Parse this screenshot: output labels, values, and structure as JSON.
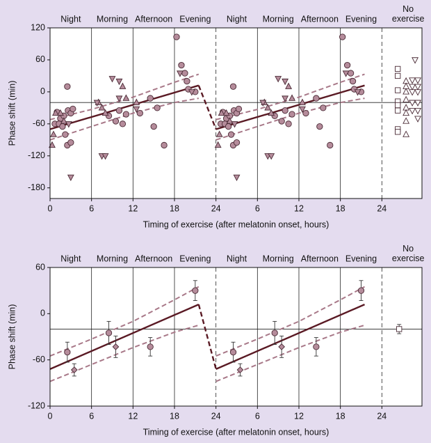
{
  "chart_data": [
    {
      "type": "scatter",
      "ylabel": "Phase shift (min)",
      "xlabel": "Timing of exercise (after melatonin onset, hours)",
      "periods": [
        "Night",
        "Morning",
        "Afternoon",
        "Evening",
        "Night",
        "Morning",
        "Afternoon",
        "Evening",
        "No exercise"
      ],
      "xlim": [
        0,
        53.8
      ],
      "ylim": [
        -200,
        120
      ],
      "xticks": [
        0,
        6,
        12,
        18,
        24,
        {
          "value": 30,
          "label": "6"
        },
        {
          "value": 36,
          "label": "12"
        },
        {
          "value": 42,
          "label": "18"
        },
        {
          "value": 48,
          "label": "24"
        }
      ],
      "yticks": [
        120,
        60,
        0,
        -60,
        -120,
        -180
      ],
      "vlines": [
        6,
        12,
        18,
        30,
        36,
        42
      ],
      "dashed_vlines": [
        24,
        48
      ],
      "ref_line": -20,
      "series": [
        {
          "marker": "circle",
          "color": "#b58c9b",
          "x": [
            2.5,
            1.0,
            1.5,
            2.0,
            2.6,
            3.0,
            3.3,
            0.7,
            1.3,
            1.8,
            2.5,
            3.0,
            2.2,
            8.5,
            9.5,
            10.0,
            11.0,
            10.5,
            13.0,
            14.5,
            15.5,
            15.0,
            16.5,
            18.3,
            19.0,
            19.5,
            20.0,
            21.0,
            19.8,
            26.5,
            25.0,
            25.5,
            26.0,
            26.6,
            27.0,
            27.3,
            24.7,
            25.3,
            25.8,
            26.5,
            27.0,
            26.2,
            32.5,
            33.5,
            34.0,
            35.0,
            34.5,
            37.0,
            38.5,
            39.5,
            39.0,
            40.5,
            42.3,
            43.0,
            43.5,
            44.0,
            45.0,
            43.8
          ],
          "values": [
            10,
            -38,
            -50,
            -45,
            -35,
            -40,
            -32,
            -60,
            -60,
            -65,
            -100,
            -95,
            -80,
            -45,
            -55,
            -35,
            -42,
            -60,
            -40,
            -12,
            -30,
            -65,
            -100,
            103,
            50,
            35,
            5,
            0,
            20,
            10,
            -38,
            -50,
            -45,
            -35,
            -40,
            -32,
            -60,
            -60,
            -65,
            -100,
            -95,
            -80,
            -45,
            -55,
            -35,
            -42,
            -60,
            -40,
            -12,
            -30,
            -65,
            -100,
            103,
            50,
            35,
            5,
            0,
            20
          ]
        },
        {
          "marker": "triangle-up",
          "color": "#b58c9b",
          "x": [
            0.3,
            0.5,
            0.8,
            1.5,
            2.0,
            7.0,
            7.5,
            8.0,
            10.5,
            11.0,
            12.5,
            24.3,
            24.5,
            24.8,
            25.5,
            26.0,
            31.0,
            31.5,
            32.0,
            34.5,
            35.0,
            36.5
          ],
          "values": [
            -100,
            -80,
            -40,
            -40,
            -55,
            -20,
            -30,
            -40,
            10,
            -12,
            -20,
            -100,
            -80,
            -40,
            -40,
            -55,
            -20,
            -30,
            -40,
            10,
            -12,
            -20
          ]
        },
        {
          "marker": "triangle-down",
          "color": "#b58c9b",
          "x": [
            3.0,
            7.5,
            8.0,
            9.0,
            10.0,
            10.0,
            6.8,
            12.5,
            18.8,
            20.5,
            2.7,
            27.0,
            31.5,
            32.0,
            33.0,
            34.0,
            34.0,
            30.8,
            36.5,
            42.8,
            44.5,
            26.7
          ],
          "values": [
            -160,
            -120,
            -120,
            25,
            20,
            -12,
            -20,
            -32,
            35,
            0,
            -60,
            -160,
            -120,
            -120,
            25,
            20,
            -12,
            -20,
            -32,
            35,
            0,
            -60
          ]
        },
        {
          "marker": "square",
          "color": "#ffffff",
          "x": [
            50.3,
            50.3,
            50.3,
            50.3,
            50.3,
            50.3,
            50.3,
            50.3
          ],
          "values": [
            43,
            30,
            3,
            -18,
            -25,
            -35,
            -70,
            -75
          ]
        },
        {
          "marker": "triangle-up",
          "color": "#ffffff",
          "x": [
            51.5,
            51.5,
            51.5,
            51.5,
            51.5,
            51.5,
            51.5,
            51.5
          ],
          "values": [
            20,
            10,
            0,
            -15,
            -30,
            -40,
            -55,
            -80
          ]
        },
        {
          "marker": "triangle-down",
          "color": "#ffffff",
          "x": [
            52.4,
            53.2,
            52.4,
            53.2,
            52.4,
            53.2,
            52.4,
            53.2,
            52.4,
            53.2,
            52.8,
            53.2
          ],
          "values": [
            22,
            22,
            10,
            10,
            0,
            0,
            -20,
            -20,
            -35,
            -35,
            60,
            -50
          ]
        }
      ],
      "lines": [
        {
          "style": "solid",
          "color": "#5a1a24",
          "x": [
            0,
            21.5,
            null,
            24,
            45.5
          ],
          "values": [
            -70,
            12,
            null,
            -70,
            12
          ]
        },
        {
          "style": "dashed",
          "color": "#5a1a24",
          "x": [
            21.5,
            24
          ],
          "values": [
            12,
            -70
          ]
        },
        {
          "style": "dashed",
          "color": "#a87888",
          "x": [
            0,
            6,
            12,
            18,
            21.5,
            null,
            24,
            30,
            36,
            42,
            45.5
          ],
          "values": [
            -52,
            -33,
            -10,
            18,
            33,
            null,
            -52,
            -33,
            -10,
            18,
            33
          ]
        },
        {
          "style": "dashed",
          "color": "#a87888",
          "x": [
            0,
            6,
            12,
            18,
            21.5,
            null,
            24,
            30,
            36,
            42,
            45.5
          ],
          "values": [
            -90,
            -65,
            -40,
            -20,
            -12,
            null,
            -90,
            -65,
            -40,
            -20,
            -12
          ]
        }
      ]
    },
    {
      "type": "errorbar",
      "ylabel": "Phase shift (min)",
      "xlabel": "Timing of exercise (after melatonin onset, hours)",
      "periods": [
        "Night",
        "Morning",
        "Afternoon",
        "Evening",
        "Night",
        "Morning",
        "Afternoon",
        "Evening",
        "No exercise"
      ],
      "xlim": [
        0,
        53.8
      ],
      "ylim": [
        -120,
        60
      ],
      "xticks": [
        0,
        6,
        12,
        18,
        24,
        {
          "value": 30,
          "label": "6"
        },
        {
          "value": 36,
          "label": "12"
        },
        {
          "value": 42,
          "label": "18"
        },
        {
          "value": 48,
          "label": "24"
        }
      ],
      "yticks": [
        60,
        0,
        -60,
        -120
      ],
      "vlines": [
        6,
        12,
        18,
        30,
        36,
        42
      ],
      "dashed_vlines": [
        24,
        48
      ],
      "ref_line": -20,
      "series": [
        {
          "marker": "circle",
          "color": "#b58c9b",
          "x": [
            2.5,
            8.5,
            14.5,
            21,
            26.5,
            32.5,
            38.5,
            45
          ],
          "values": [
            -50,
            -25,
            -43,
            30,
            -50,
            -25,
            -43,
            30
          ],
          "errors": [
            13,
            15,
            12,
            13,
            13,
            15,
            12,
            13
          ]
        },
        {
          "marker": "diamond",
          "color": "#b58c9b",
          "x": [
            3.5,
            9.5,
            27.5,
            33.5
          ],
          "values": [
            -73,
            -43,
            -73,
            -43
          ],
          "errors": [
            8,
            14,
            8,
            14
          ]
        },
        {
          "marker": "square",
          "color": "#ffffff",
          "x": [
            50.5
          ],
          "values": [
            -20
          ],
          "errors": [
            6
          ]
        }
      ],
      "lines": [
        {
          "style": "solid",
          "color": "#5a1a24",
          "x": [
            0,
            21.5,
            null,
            24,
            45.5
          ],
          "values": [
            -72,
            12,
            null,
            -72,
            12
          ]
        },
        {
          "style": "dashed",
          "color": "#5a1a24",
          "x": [
            21.5,
            24
          ],
          "values": [
            12,
            -72
          ]
        },
        {
          "style": "dashed",
          "color": "#a87888",
          "x": [
            0,
            6,
            12,
            18,
            21.5,
            null,
            24,
            30,
            36,
            42,
            45.5
          ],
          "values": [
            -55,
            -33,
            -10,
            18,
            35,
            null,
            -55,
            -33,
            -10,
            18,
            35
          ]
        },
        {
          "style": "dashed",
          "color": "#a87888",
          "x": [
            0,
            6,
            12,
            18,
            21.5,
            null,
            24,
            30,
            36,
            42,
            45.5
          ],
          "values": [
            -88,
            -66,
            -44,
            -24,
            -15,
            null,
            -88,
            -66,
            -44,
            -24,
            -15
          ]
        }
      ]
    }
  ]
}
